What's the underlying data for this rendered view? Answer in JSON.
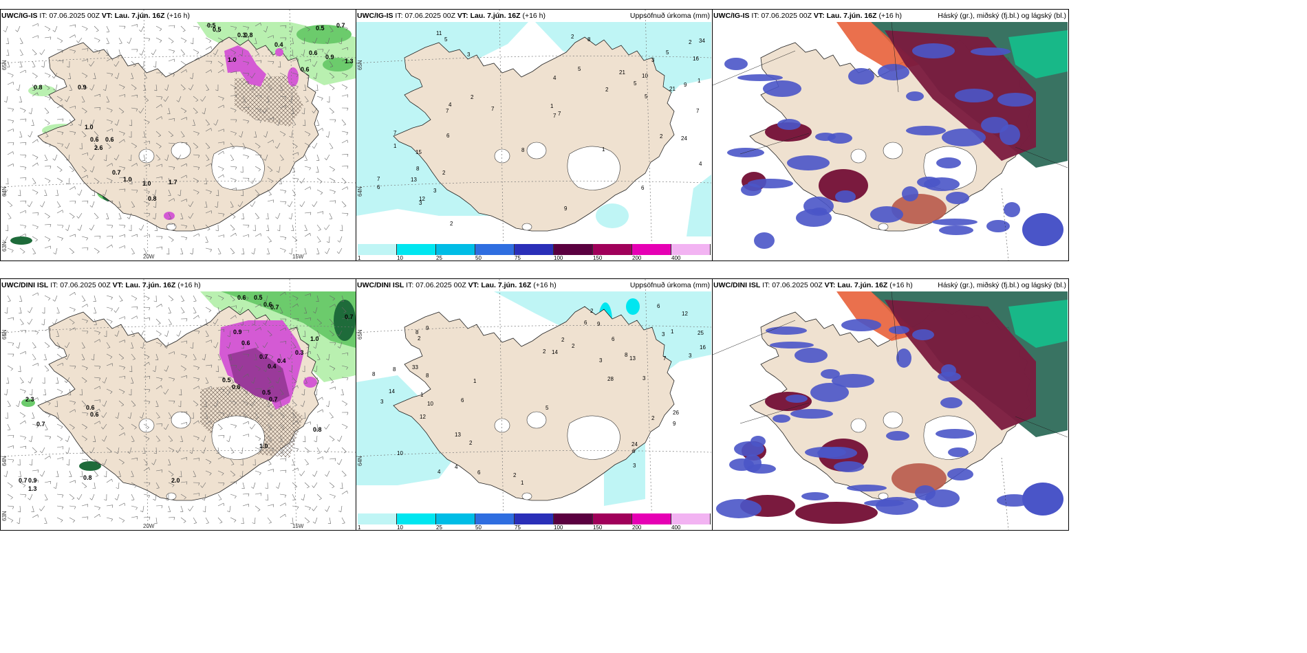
{
  "panels": [
    {
      "model": "UWC/IG-IS",
      "it_label": "IT:",
      "it": "07.06.2025 00Z",
      "vt_label": "VT:",
      "vt": "Lau. 7.jún. 16Z",
      "lead": "(+16 h)",
      "right_title": "",
      "lon_labels": [
        "20W",
        "15W"
      ],
      "lat_labels": [
        "65N",
        "64N",
        "63N"
      ],
      "values": [
        "0.5",
        "0.5",
        "0.7",
        "0.3",
        "0.8",
        "0.4",
        "0.5",
        "0.6",
        "0.9",
        "1.3",
        "1.0",
        "0.6",
        "0.9",
        "0.8",
        "1.0",
        "0.6",
        "2.6",
        "0.7",
        "1.0",
        "1.0",
        "0.8",
        "1.7",
        "0.6"
      ]
    },
    {
      "model": "UWC/IG-IS",
      "it_label": "IT:",
      "it": "07.06.2025 00Z",
      "vt_label": "VT:",
      "vt": "Lau. 7.jún. 16Z",
      "lead": "(+16 h)",
      "right_title": "Uppsöfnuð úrkoma (mm)",
      "lat_labels": [
        "65N",
        "64N"
      ],
      "values": [
        "3",
        "1",
        "7",
        "5",
        "5",
        "7",
        "7",
        "21",
        "7",
        "7",
        "34",
        "24",
        "15",
        "16",
        "21",
        "11",
        "10",
        "8",
        "7",
        "8",
        "9",
        "2",
        "2",
        "1",
        "3",
        "5",
        "4",
        "1",
        "3",
        "2",
        "6",
        "5",
        "1",
        "13",
        "4",
        "7",
        "8",
        "9",
        "6",
        "12",
        "2",
        "2",
        "6",
        "2",
        "4",
        "3",
        "5",
        "2"
      ],
      "legend_ticks": [
        "1",
        "10",
        "25",
        "50",
        "75",
        "100",
        "150",
        "200",
        "400"
      ],
      "legend_colors": [
        "#bff5f5",
        "#00e6f0",
        "#00bde6",
        "#2f6ee0",
        "#2a2fb8",
        "#5a0040",
        "#a0005a",
        "#e600b4",
        "#f2b3f2"
      ]
    },
    {
      "model": "UWC/IG-IS",
      "it_label": "IT:",
      "it": "07.06.2025 00Z",
      "vt_label": "VT:",
      "vt": "Lau. 7.jún. 16Z",
      "lead": "(+16 h)",
      "right_title": "Háský (gr.), miðský (fj.bl.) og lágský (bl.)"
    },
    {
      "model": "UWC/DINI ISL",
      "it_label": "IT:",
      "it": "07.06.2025 00Z",
      "vt_label": "VT:",
      "vt": "Lau. 7.jún. 16Z",
      "lead": "(+16 h)",
      "right_title": "",
      "lon_labels": [
        "20W",
        "15W"
      ],
      "lat_labels": [
        "65N",
        "64N",
        "63N"
      ],
      "values": [
        "0.6",
        "0.5",
        "0.6",
        "0.7",
        "0.7",
        "1.0",
        "0.3",
        "0.9",
        "0.6",
        "0.7",
        "0.4",
        "0.4",
        "0.5",
        "0.6",
        "0.5",
        "0.7",
        "2.3",
        "0.6",
        "0.6",
        "0.7",
        "0.8",
        "1.0",
        "0.7",
        "0.9",
        "1.3",
        "0.8",
        "2.0"
      ]
    },
    {
      "model": "UWC/DINI ISL",
      "it_label": "IT:",
      "it": "07.06.2025 00Z",
      "vt_label": "VT:",
      "vt": "Lau. 7.jún. 16Z",
      "lead": "(+16 h)",
      "right_title": "Uppsöfnuð úrkoma (mm)",
      "lat_labels": [
        "65N",
        "64N"
      ],
      "values": [
        "9",
        "12",
        "13",
        "12",
        "13",
        "24",
        "33",
        "25",
        "26",
        "10",
        "9",
        "3",
        "14",
        "16",
        "28",
        "8",
        "14",
        "6",
        "6",
        "3",
        "1",
        "8",
        "6",
        "3",
        "1",
        "7",
        "9",
        "10",
        "6",
        "5",
        "8",
        "8",
        "2",
        "1",
        "3",
        "2",
        "2",
        "2",
        "2",
        "4",
        "2",
        "3",
        "4",
        "1",
        "6",
        "8",
        "6",
        "2",
        "3",
        "2"
      ],
      "legend_ticks": [
        "1",
        "10",
        "25",
        "50",
        "75",
        "100",
        "150",
        "200",
        "400"
      ],
      "legend_colors": [
        "#bff5f5",
        "#00e6f0",
        "#00bde6",
        "#2f6ee0",
        "#2a2fb8",
        "#5a0040",
        "#a0005a",
        "#e600b4",
        "#f2b3f2"
      ]
    },
    {
      "model": "UWC/DINI ISL",
      "it_label": "IT:",
      "it": "07.06.2025 00Z",
      "vt_label": "VT:",
      "vt": "Lau. 7.jún. 16Z",
      "lead": "(+16 h)",
      "right_title": "Háský (gr.), miðský (fj.bl.) og lágský (bl.)"
    }
  ],
  "colors": {
    "land": "#efe1d0",
    "precip_light": "#bff5f5",
    "precip_mid": "#00e6f0",
    "green_light": "#b9f0b0",
    "green_mid": "#6ccb6c",
    "green_dark": "#1e6b3a",
    "magenta": "#d45ad4",
    "cloud_high": "#2e6b5a",
    "cloud_mid": "#7a1a3e",
    "cloud_low": "#4a55c8"
  }
}
